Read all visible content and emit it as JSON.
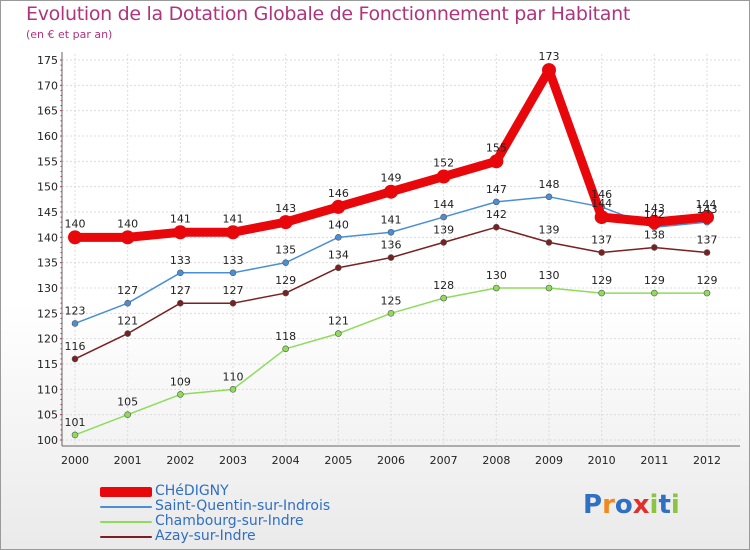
{
  "title": "Evolution de la Dotation Globale de Fonctionnement par Habitant",
  "subtitle": "(en € et par an)",
  "logo_text": "Proxiti",
  "chart_data": {
    "type": "line",
    "title": "Evolution de la Dotation Globale de Fonctionnement par Habitant",
    "subtitle": "(en € et par an)",
    "xlabel": "",
    "ylabel": "",
    "x": [
      "2000",
      "2001",
      "2002",
      "2003",
      "2004",
      "2005",
      "2006",
      "2007",
      "2008",
      "2009",
      "2010",
      "2011",
      "2012"
    ],
    "ylim": [
      100,
      175
    ],
    "yticks": [
      "100",
      "105",
      "110",
      "115",
      "120",
      "125",
      "130",
      "135",
      "140",
      "145",
      "150",
      "155",
      "160",
      "165",
      "170",
      "175"
    ],
    "legend_position": "bottom-left",
    "series": [
      {
        "name": "CHéDIGNY",
        "color": "#e8070a",
        "values": [
          140,
          140,
          141,
          141,
          143,
          146,
          149,
          152,
          155,
          173,
          144,
          143,
          144
        ],
        "labels": [
          "140",
          "140",
          "141",
          "141",
          "143",
          "146",
          "149",
          "152",
          "155",
          "173",
          "144",
          "143",
          "144"
        ]
      },
      {
        "name": "Saint-Quentin-sur-Indrois",
        "color": "#4a8fd6",
        "values": [
          123,
          127,
          133,
          133,
          135,
          140,
          141,
          144,
          147,
          148,
          146,
          142,
          143
        ],
        "labels": [
          "123",
          "127",
          "133",
          "133",
          "135",
          "140",
          "141",
          "144",
          "147",
          "148",
          "146",
          "142",
          "143"
        ]
      },
      {
        "name": "Chambourg-sur-Indre",
        "color": "#8edc5a",
        "values": [
          101,
          105,
          109,
          110,
          118,
          121,
          125,
          128,
          130,
          130,
          129,
          129,
          129
        ],
        "labels": [
          "101",
          "105",
          "109",
          "110",
          "118",
          "121",
          "125",
          "128",
          "130",
          "130",
          "129",
          "129",
          "129"
        ]
      },
      {
        "name": "Azay-sur-Indre",
        "color": "#7a1f22",
        "values": [
          116,
          121,
          127,
          127,
          129,
          134,
          136,
          139,
          142,
          139,
          137,
          138,
          137
        ],
        "labels": [
          "116",
          "121",
          "127",
          "127",
          "129",
          "134",
          "136",
          "139",
          "142",
          "139",
          "137",
          "138",
          "137"
        ]
      }
    ]
  }
}
